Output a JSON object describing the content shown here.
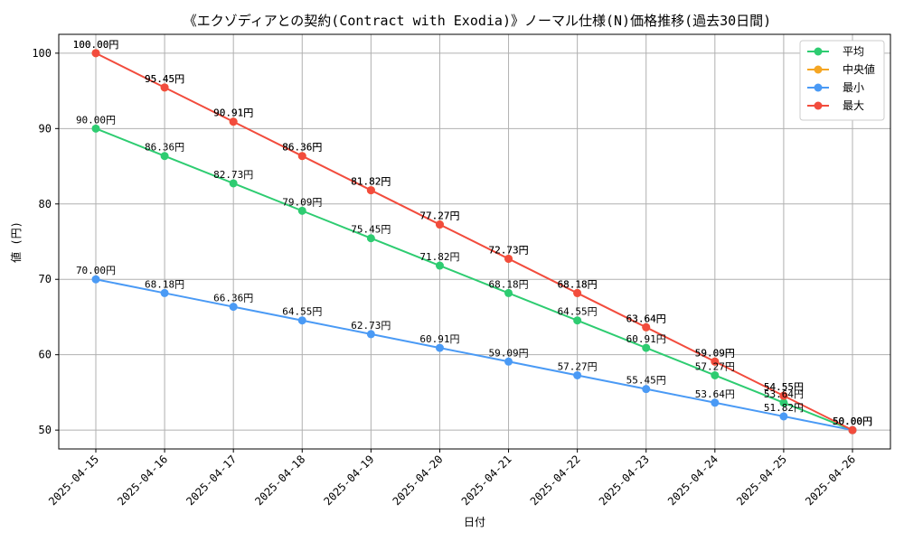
{
  "chart_data": {
    "type": "line",
    "title": "《エクゾディアとの契約(Contract with Exodia)》ノーマル仕様(N)価格推移(過去30日間)",
    "xlabel": "日付",
    "ylabel": "値 (円)",
    "categories": [
      "2025-04-15",
      "2025-04-16",
      "2025-04-17",
      "2025-04-18",
      "2025-04-19",
      "2025-04-20",
      "2025-04-21",
      "2025-04-22",
      "2025-04-23",
      "2025-04-24",
      "2025-04-25",
      "2025-04-26"
    ],
    "ylim": [
      47.5,
      102.5
    ],
    "yticks": [
      50,
      60,
      70,
      80,
      90,
      100
    ],
    "grid": true,
    "legend_position": "top-right",
    "value_suffix": "円",
    "series": [
      {
        "name": "平均",
        "color": "#2ecc71",
        "values": [
          90.0,
          86.36,
          82.73,
          79.09,
          75.45,
          71.82,
          68.18,
          64.55,
          60.91,
          57.27,
          53.64,
          50.0
        ],
        "show_line": true,
        "show_labels": true
      },
      {
        "name": "中央値",
        "color": "#f5a623",
        "values": [
          100.0,
          95.45,
          90.91,
          86.36,
          81.82,
          77.27,
          72.73,
          68.18,
          63.64,
          59.09,
          54.55,
          50.0
        ],
        "show_line": false,
        "show_labels": true
      },
      {
        "name": "最小",
        "color": "#4a9af5",
        "values": [
          70.0,
          68.18,
          66.36,
          64.55,
          62.73,
          60.91,
          59.09,
          57.27,
          55.45,
          53.64,
          51.82,
          50.0
        ],
        "show_line": true,
        "show_labels": true
      },
      {
        "name": "最大",
        "color": "#f24c3d",
        "values": [
          100.0,
          95.45,
          90.91,
          86.36,
          81.82,
          77.27,
          72.73,
          68.18,
          63.64,
          59.09,
          54.55,
          50.0
        ],
        "show_line": true,
        "show_labels": true
      }
    ]
  }
}
